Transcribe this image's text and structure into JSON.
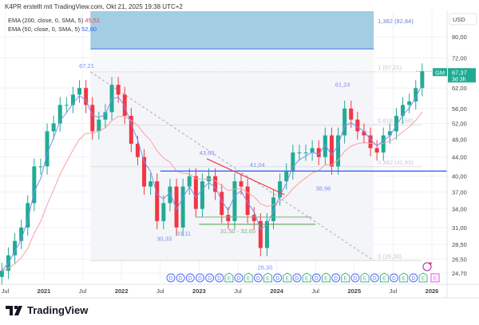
{
  "header": {
    "credit": "K4PR erstellt mit TradingView.com, Okt 21, 2025 19:38 UTC+2"
  },
  "legend": [
    {
      "label": "EMA (200, close, 0, SMA, 5)",
      "value": "45,51",
      "color": "#f23645"
    },
    {
      "label": "EMA (50, close, 0, SMA, 5)",
      "value": "52,60",
      "color": "#2962ff"
    }
  ],
  "currency": "USD",
  "symbol": {
    "ticker": "GM",
    "price": "67,37",
    "countdown": "3d 3h",
    "color": "#22ab94"
  },
  "brand": "TradingView",
  "colors": {
    "up": "#22ab94",
    "down": "#f23645",
    "ema200": "#f7a1a6",
    "ema50": "#7b8ff7",
    "level": "#4c6ef5"
  },
  "chart_data": {
    "type": "candlestick",
    "scale": "log",
    "y_ticks": [
      "80,00",
      "72,00",
      "62,00",
      "56,00",
      "52,00",
      "48,00",
      "44,00",
      "40,00",
      "37,00",
      "34,00",
      "31,00",
      "28,50",
      "26,50",
      "24,70"
    ],
    "x_ticks": [
      "Jul",
      "2021",
      "Jul",
      "2022",
      "Jul",
      "2023",
      "Jul",
      "2024",
      "Jul",
      "2025",
      "Jul",
      "2026"
    ],
    "start": "2020-06",
    "monthly_close": [
      25,
      27,
      29,
      31,
      35,
      42,
      42,
      50,
      52,
      57,
      57,
      60,
      62,
      57,
      50,
      53,
      55,
      63,
      60,
      54,
      47,
      44,
      38,
      39,
      32,
      35,
      38,
      31,
      38,
      40,
      34,
      39,
      40,
      37,
      33,
      32,
      39,
      38,
      33,
      32,
      28,
      32,
      36,
      39,
      41,
      45,
      45,
      45,
      46,
      44,
      49,
      42,
      49,
      56,
      53,
      50,
      49,
      46,
      45,
      49,
      50,
      54,
      57,
      58,
      62,
      67.37
    ],
    "annotations": [
      {
        "text": "67,21",
        "price": 67.21,
        "date": 2021.55
      },
      {
        "text": "30,33",
        "price": 30.33,
        "date": 2022.55
      },
      {
        "text": "31,11",
        "price": 31.11,
        "date": 2022.8
      },
      {
        "text": "43,63",
        "price": 43.63,
        "date": 2023.1
      },
      {
        "text": "41,04",
        "price": 41.04,
        "date": 2023.75
      },
      {
        "text": "31,50 - 32,65",
        "price": 31.5,
        "date": 2023.5
      },
      {
        "text": "26,30",
        "price": 26.3,
        "date": 2023.85
      },
      {
        "text": "38,96",
        "price": 38.96,
        "date": 2024.6
      },
      {
        "text": "61,24",
        "price": 61.24,
        "date": 2024.85
      }
    ],
    "fib": [
      {
        "text": "1,382 (82,84)",
        "price": 82.84
      },
      {
        "text": "1 (67,21)",
        "price": 67.21
      },
      {
        "text": "0,618 (51,58)",
        "price": 51.58
      },
      {
        "text": "0,382 (41,93)",
        "price": 41.93
      },
      {
        "text": "0 (26,30)",
        "price": 26.3
      }
    ],
    "events": [
      "D",
      "D",
      "D",
      "D",
      "D",
      "D",
      "E",
      "D",
      "E",
      "D",
      "E",
      "D",
      "E",
      "D",
      "E",
      "D",
      "E",
      "D",
      "E",
      "D",
      "E",
      "D",
      "E",
      "D",
      "E",
      "D",
      "E"
    ]
  }
}
